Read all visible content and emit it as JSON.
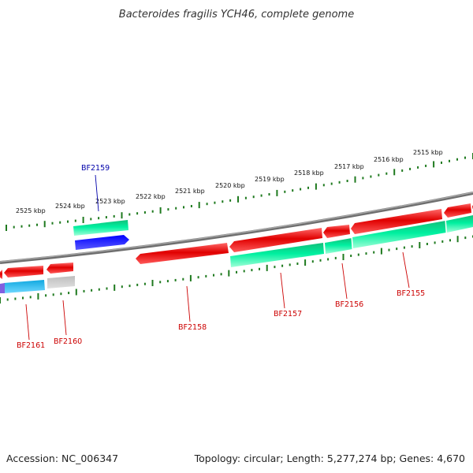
{
  "title": "Bacteroides fragilis YCH46, complete genome",
  "footer": {
    "accession": "Accession: NC_006347",
    "topology": "Topology: circular; Length: 5,277,274 bp; Genes: 4,670"
  },
  "colors": {
    "backbone": "#8a8a8a",
    "scale_tick": "#1f7a1f",
    "forward_gene": "#e00000",
    "reverse_gene": "#00e890",
    "highlight_gene": "#0000e0",
    "cyan_gene": "#10b8f0",
    "grey_gene": "#b0b0b0",
    "purple_gene": "#8060e0",
    "label_red": "#cc0000",
    "label_blue": "#0000aa"
  },
  "scale": {
    "unit": "kbp",
    "ticks": [
      "2525 kbp",
      "2524 kbp",
      "2523 kbp",
      "2522 kbp",
      "2521 kbp",
      "2520 kbp",
      "2519 kbp",
      "2518 kbp",
      "2517 kbp",
      "2516 kbp",
      "2515 kbp"
    ]
  },
  "genes": [
    {
      "id": "BF2155",
      "color": "red"
    },
    {
      "id": "BF2156",
      "color": "red"
    },
    {
      "id": "BF2157",
      "color": "red"
    },
    {
      "id": "BF2158",
      "color": "red"
    },
    {
      "id": "BF2159",
      "color": "blue"
    },
    {
      "id": "BF2160",
      "color": "red"
    },
    {
      "id": "BF2161",
      "color": "red"
    }
  ]
}
